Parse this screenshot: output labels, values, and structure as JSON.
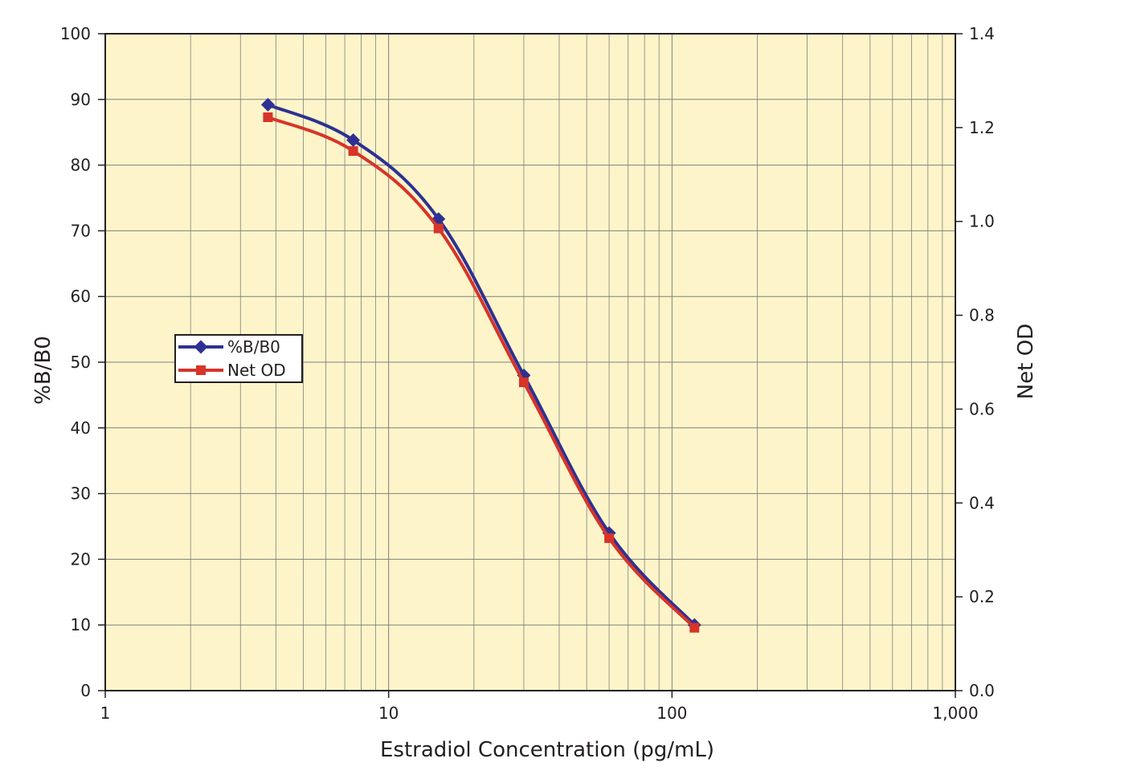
{
  "chart_data": {
    "type": "line",
    "title": "",
    "xlabel": "Estradiol Concentration (pg/mL)",
    "ylabel": "%B/B0",
    "y2label": "Net OD",
    "xscale": "log",
    "xlim": [
      1,
      1000
    ],
    "ylim": [
      0,
      100
    ],
    "y2lim": [
      0,
      1.4
    ],
    "x_ticks": [
      1,
      10,
      100,
      1000
    ],
    "x_tick_labels": [
      "1",
      "10",
      "100",
      "1,000"
    ],
    "y_ticks": [
      0,
      10,
      20,
      30,
      40,
      50,
      60,
      70,
      80,
      90,
      100
    ],
    "y_tick_labels": [
      "0",
      "10",
      "20",
      "30",
      "40",
      "50",
      "60",
      "70",
      "80",
      "90",
      "100"
    ],
    "y2_ticks": [
      0,
      0.2,
      0.4,
      0.6,
      0.8,
      1.0,
      1.2,
      1.4
    ],
    "y2_tick_labels": [
      "0.0",
      "0.2",
      "0.4",
      "0.6",
      "0.8",
      "1.0",
      "1.2",
      "1.4"
    ],
    "grid": true,
    "legend_position": "left",
    "x": [
      3.75,
      7.5,
      15,
      30,
      60,
      120
    ],
    "series": [
      {
        "name": "%B/B0",
        "axis": "left",
        "marker": "diamond",
        "color": "#2e3192",
        "values": [
          89.2,
          83.8,
          71.8,
          48.0,
          24.0,
          10.0
        ]
      },
      {
        "name": "Net OD",
        "axis": "right",
        "marker": "square",
        "color": "#d7342a",
        "values": [
          1.222,
          1.15,
          0.985,
          0.657,
          0.325,
          0.134
        ]
      }
    ],
    "colors": {
      "plot_background": "#fdf5c9",
      "grid": "#7f7f7f",
      "axis": "#231f20"
    }
  }
}
